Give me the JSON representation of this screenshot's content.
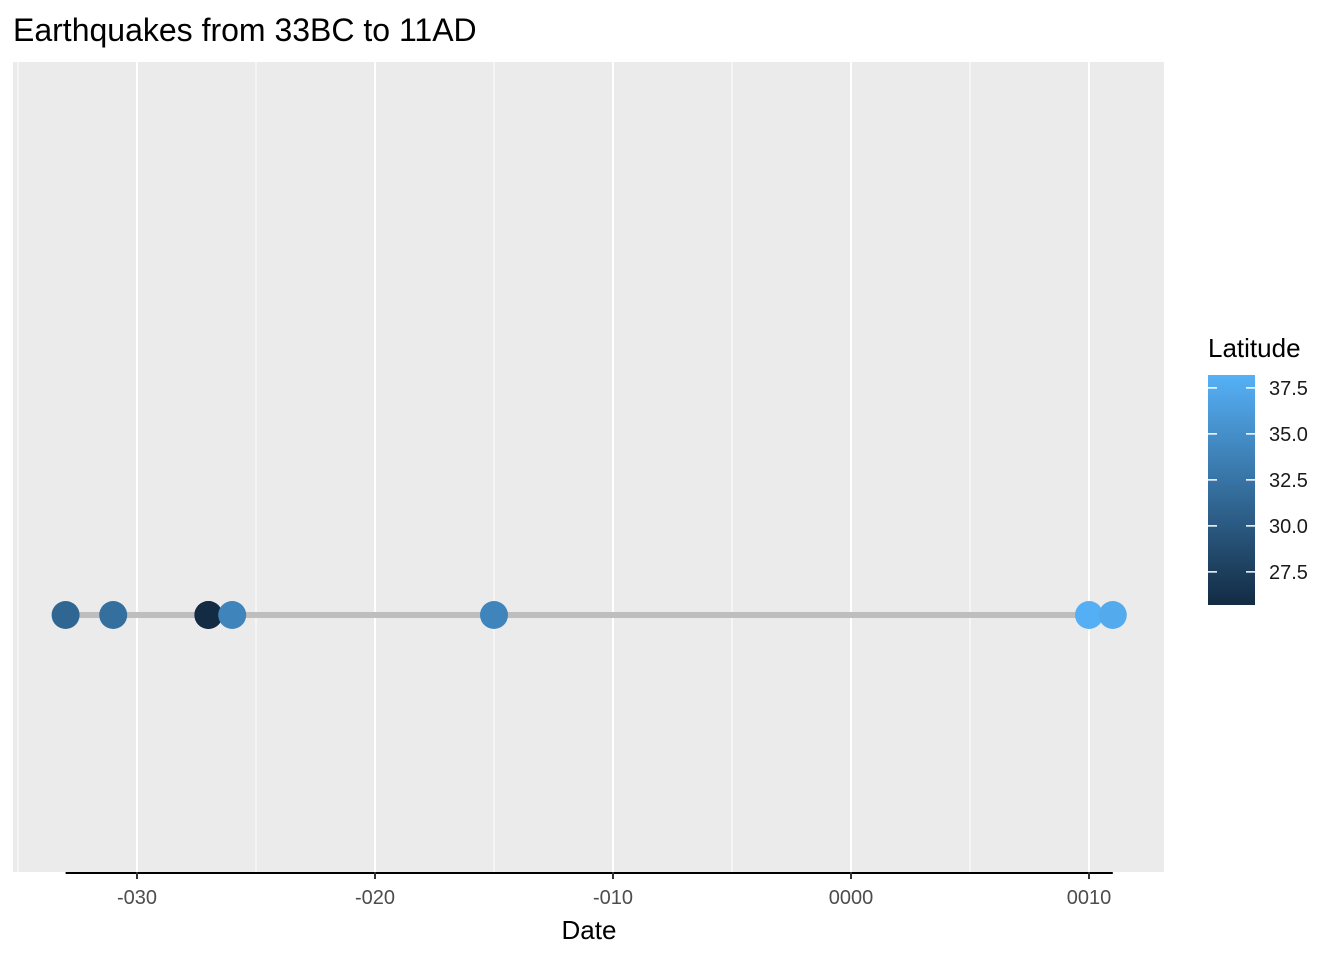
{
  "chart_data": {
    "type": "scatter",
    "title": "Earthquakes from 33BC to 11AD",
    "xlabel": "Date",
    "ylabel": "",
    "x_scale": "date (years)",
    "xlim": [
      -35,
      13
    ],
    "x_ticks": [
      -30,
      -20,
      -10,
      0,
      10
    ],
    "x_tick_labels": [
      "-030",
      "-020",
      "-010",
      "0000",
      "0010"
    ],
    "grid": true,
    "timeline_segment": [
      -33,
      11
    ],
    "timeline_color": "#bebebe",
    "panel_background": "#ebebeb",
    "points": [
      {
        "x": -33,
        "latitude": 31.2
      },
      {
        "x": -31,
        "latitude": 32.0
      },
      {
        "x": -27,
        "latitude": 26.0
      },
      {
        "x": -27,
        "latitude": 25.7
      },
      {
        "x": -26,
        "latitude": 34.0
      },
      {
        "x": -15,
        "latitude": 34.0
      },
      {
        "x": 10,
        "latitude": 38.0
      },
      {
        "x": 11,
        "latitude": 37.6
      }
    ],
    "legend": {
      "title": "Latitude",
      "position": "right",
      "range": [
        25.7,
        38.2
      ],
      "ticks": [
        27.5,
        30.0,
        32.5,
        35.0,
        37.5
      ],
      "tick_labels": [
        "27.5",
        "30.0",
        "32.5",
        "35.0",
        "37.5"
      ],
      "low_color": "#132b43",
      "high_color": "#56b1f7"
    }
  }
}
